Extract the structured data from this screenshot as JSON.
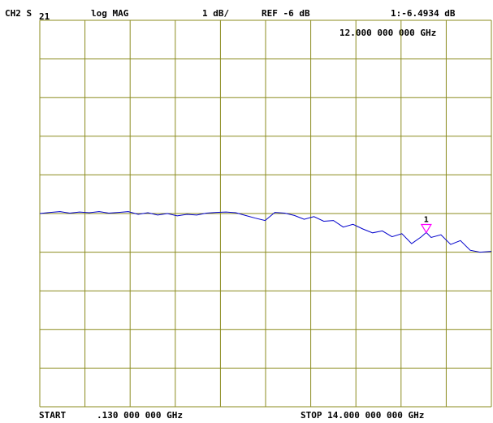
{
  "header": {
    "channel": "CH2 S",
    "param_sub": "21",
    "format": "log MAG",
    "scale": "1 dB/",
    "reference": "REF -6 dB",
    "marker_readout": "1:-6.4934 dB",
    "marker_freq": "12.000 000 000 GHz"
  },
  "footer": {
    "start_label": "START",
    "start_value": ".130 000 000 GHz",
    "stop_text": "STOP 14.000 000 000 GHz"
  },
  "colors": {
    "grid": "#8b8b1e",
    "trace": "#0000cc",
    "marker": "#ff00ff",
    "text": "#000000"
  },
  "chart_data": {
    "type": "line",
    "x_unit": "GHz",
    "y_unit": "dB",
    "xlim": [
      0.13,
      14.0
    ],
    "ylim": [
      -11,
      -1
    ],
    "grid": true,
    "divisions": {
      "x": 10,
      "y": 10
    },
    "series": [
      {
        "x": [
          0.13,
          0.45,
          0.75,
          1.05,
          1.35,
          1.65,
          1.95,
          2.25,
          2.55,
          2.85,
          3.15,
          3.45,
          3.75,
          4.05,
          4.35,
          4.65,
          4.95,
          5.25,
          5.55,
          5.85,
          6.15,
          6.45,
          6.75,
          7.05,
          7.35,
          7.65,
          7.95,
          8.25,
          8.55,
          8.85,
          9.15,
          9.45,
          9.75,
          10.05,
          10.35,
          10.65,
          10.95,
          11.25,
          11.55,
          11.85,
          12.0,
          12.15,
          12.45,
          12.75,
          13.05,
          13.35,
          13.65,
          14.0
        ],
        "y": [
          -6.0,
          -5.97,
          -5.95,
          -5.99,
          -5.96,
          -5.98,
          -5.95,
          -5.99,
          -5.97,
          -5.95,
          -6.02,
          -5.98,
          -6.04,
          -6.0,
          -6.06,
          -6.02,
          -6.04,
          -5.99,
          -5.97,
          -5.96,
          -5.98,
          -6.05,
          -6.12,
          -6.18,
          -5.97,
          -5.99,
          -6.05,
          -6.15,
          -6.08,
          -6.2,
          -6.18,
          -6.35,
          -6.28,
          -6.4,
          -6.5,
          -6.45,
          -6.6,
          -6.52,
          -6.78,
          -6.6,
          -6.49,
          -6.62,
          -6.55,
          -6.8,
          -6.7,
          -6.95,
          -7.0,
          -6.98
        ]
      }
    ],
    "markers": [
      {
        "label": "1",
        "x": 12.0,
        "y": -6.4934
      }
    ]
  }
}
